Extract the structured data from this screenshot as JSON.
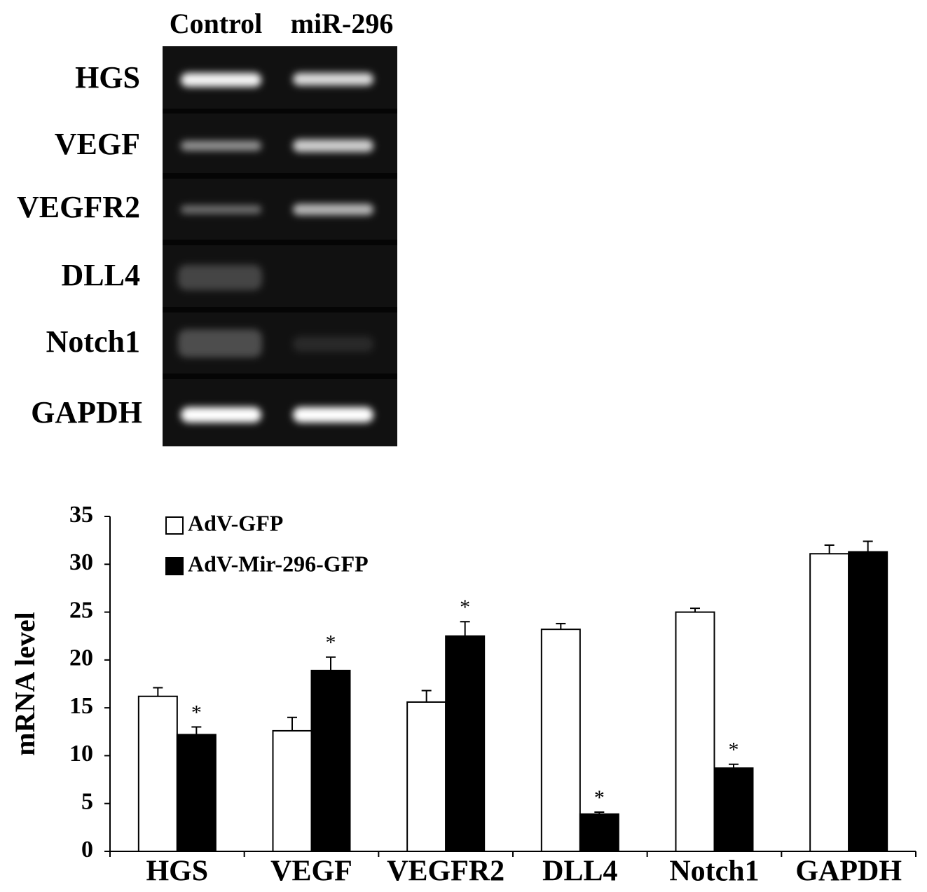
{
  "gel": {
    "lanes": [
      "Control",
      "miR-296"
    ],
    "rows": [
      "HGS",
      "VEGF",
      "VEGFR2",
      "DLL4",
      "Notch1",
      "GAPDH"
    ]
  },
  "chart_data": {
    "type": "bar",
    "y_label": "mRNA level",
    "categories": [
      "HGS",
      "VEGF",
      "VEGFR2",
      "DLL4",
      "Notch1",
      "GAPDH"
    ],
    "series": [
      {
        "name": "AdV-GFP",
        "color": "#ffffff",
        "values": [
          16.2,
          12.6,
          15.6,
          23.2,
          25.0,
          31.1
        ],
        "errors": [
          0.9,
          1.4,
          1.2,
          0.6,
          0.4,
          0.9
        ]
      },
      {
        "name": "AdV-Mir-296-GFP",
        "color": "#000000",
        "values": [
          12.2,
          18.9,
          22.5,
          3.9,
          8.7,
          31.3
        ],
        "errors": [
          0.8,
          1.4,
          1.5,
          0.2,
          0.4,
          1.1
        ],
        "labels": [
          "*",
          "*",
          "*",
          "*",
          "*",
          null
        ]
      }
    ],
    "ylim": [
      0,
      35
    ],
    "yticks": [
      0,
      5,
      10,
      15,
      20,
      25,
      30,
      35
    ],
    "legend": "upper left"
  }
}
